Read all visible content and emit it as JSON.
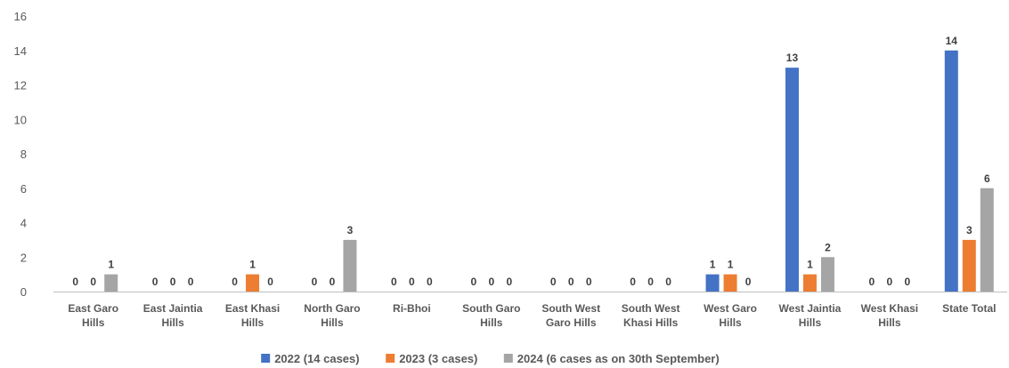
{
  "chart_data": {
    "type": "bar",
    "categories": [
      [
        "East Garo",
        "Hills"
      ],
      [
        "East Jaintia",
        "Hills"
      ],
      [
        "East Khasi",
        "Hills"
      ],
      [
        "North Garo",
        "Hills"
      ],
      [
        "Ri-Bhoi"
      ],
      [
        "South Garo",
        "Hills"
      ],
      [
        "South West",
        "Garo Hills"
      ],
      [
        "South West",
        "Khasi Hills"
      ],
      [
        "West Garo",
        "Hills"
      ],
      [
        "West Jaintia",
        "Hills"
      ],
      [
        "West Khasi",
        "Hills"
      ],
      [
        "State Total"
      ]
    ],
    "series": [
      {
        "name": "2022 (14 cases)",
        "color": "#4472C4",
        "values": [
          0,
          0,
          0,
          0,
          0,
          0,
          0,
          0,
          1,
          13,
          0,
          14
        ]
      },
      {
        "name": "2023 (3 cases)",
        "color": "#ED7D31",
        "values": [
          0,
          0,
          1,
          0,
          0,
          0,
          0,
          0,
          1,
          1,
          0,
          3
        ]
      },
      {
        "name": "2024 (6 cases as on 30th September)",
        "color": "#A5A5A5",
        "values": [
          1,
          0,
          0,
          3,
          0,
          0,
          0,
          0,
          0,
          2,
          0,
          6
        ]
      }
    ],
    "ylim": [
      0,
      16
    ],
    "yticks": [
      0,
      2,
      4,
      6,
      8,
      10,
      12,
      14,
      16
    ],
    "grid": false,
    "data_labels": true,
    "legend_position": "bottom"
  }
}
